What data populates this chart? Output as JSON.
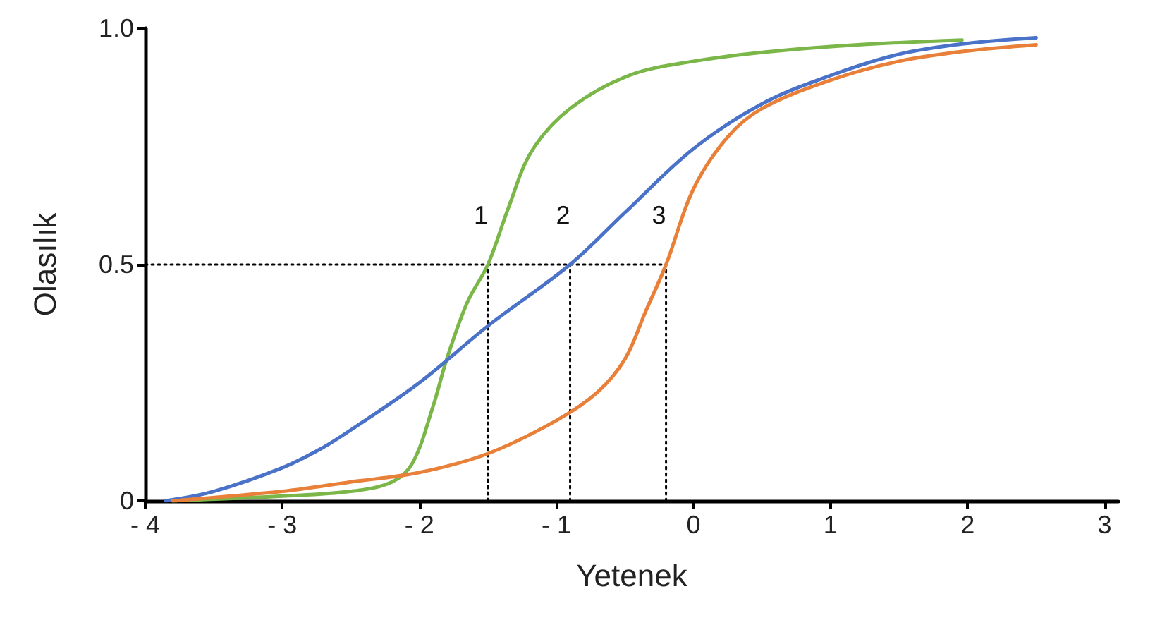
{
  "chart_data": {
    "type": "line",
    "xlabel": "Yetenek",
    "ylabel": "Olasılık",
    "xlim": [
      -4,
      3.1
    ],
    "ylim": [
      0,
      1
    ],
    "xticks": [
      {
        "value": -4,
        "label": "- 4"
      },
      {
        "value": -3,
        "label": "- 3"
      },
      {
        "value": -2,
        "label": "- 2"
      },
      {
        "value": -1,
        "label": "- 1"
      },
      0,
      1,
      2,
      3
    ],
    "yticks": [
      0,
      {
        "value": 0.5,
        "label": "0.5"
      },
      {
        "value": 1,
        "label": "1.0"
      }
    ],
    "grid": false,
    "marker": "none",
    "series": [
      {
        "color": "#7ab648",
        "x": [
          -3.8,
          -3,
          -2.5,
          -2.2,
          -2.05,
          -1.9,
          -1.8,
          -1.65,
          -1.5,
          -1.35,
          -1.18,
          -0.9,
          -0.47,
          0,
          0.54,
          1.2,
          1.96
        ],
        "values": [
          0.0,
          0.01,
          0.02,
          0.04,
          0.08,
          0.2,
          0.3,
          0.42,
          0.5,
          0.62,
          0.74,
          0.83,
          0.9,
          0.93,
          0.95,
          0.965,
          0.975
        ]
      },
      {
        "color": "#4a72c8",
        "x": [
          -3.85,
          -3.5,
          -3,
          -2.72,
          -2.5,
          -2,
          -1.5,
          -0.9,
          -0.5,
          0,
          0.5,
          1,
          1.5,
          2,
          2.5
        ],
        "values": [
          0.0,
          0.02,
          0.07,
          0.11,
          0.15,
          0.25,
          0.37,
          0.5,
          0.61,
          0.745,
          0.84,
          0.9,
          0.945,
          0.968,
          0.98
        ]
      },
      {
        "color": "#e8803a",
        "x": [
          -3.8,
          -3,
          -2.5,
          -2,
          -1.5,
          -1,
          -0.7,
          -0.5,
          -0.35,
          -0.2,
          0,
          0.25,
          0.5,
          1,
          1.5,
          2,
          2.5
        ],
        "values": [
          0.0,
          0.02,
          0.04,
          0.06,
          0.1,
          0.17,
          0.23,
          0.3,
          0.4,
          0.5,
          0.66,
          0.77,
          0.83,
          0.89,
          0.93,
          0.952,
          0.965
        ]
      },
      {
        "color": "#000000",
        "line_style": "dotted",
        "x": [
          -4,
          -0.2
        ],
        "values": [
          0.5,
          0.5
        ]
      },
      {
        "color": "#000000",
        "line_style": "dotted",
        "x": [
          -1.5,
          -1.5
        ],
        "values": [
          0,
          0.5
        ]
      },
      {
        "color": "#000000",
        "line_style": "dotted",
        "x": [
          -0.9,
          -0.9
        ],
        "values": [
          0,
          0.5
        ]
      },
      {
        "color": "#000000",
        "line_style": "dotted",
        "x": [
          -0.2,
          -0.2
        ],
        "values": [
          0,
          0.5
        ]
      }
    ],
    "annotations": [
      {
        "text": "1",
        "x": -1.5,
        "y": 0.5
      },
      {
        "text": "2",
        "x": -0.9,
        "y": 0.5
      },
      {
        "text": "3",
        "x": -0.2,
        "y": 0.5
      }
    ]
  }
}
